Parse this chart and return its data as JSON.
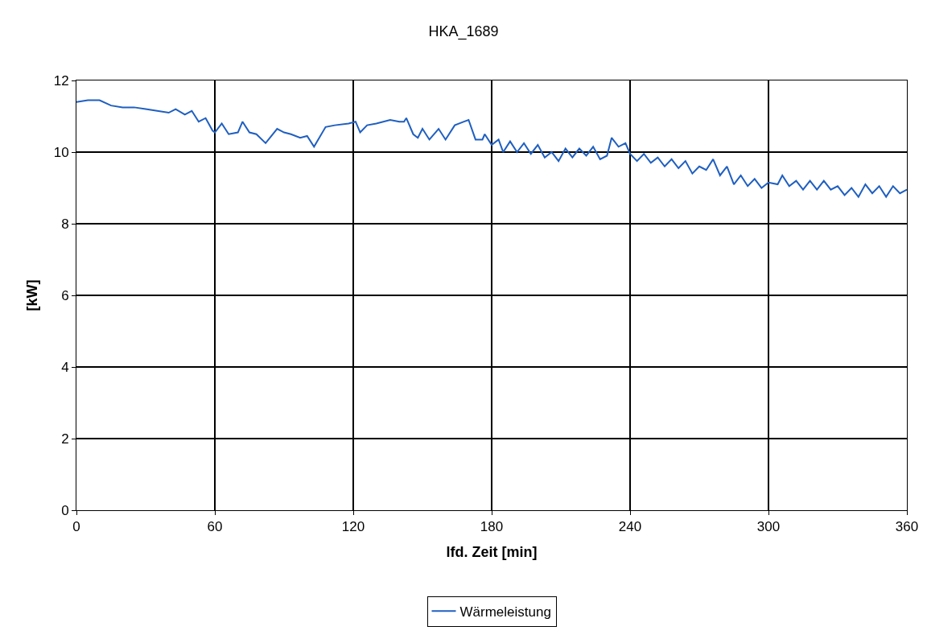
{
  "chart_data": {
    "type": "line",
    "title": "HKA_1689",
    "xlabel": "lfd. Zeit [min]",
    "ylabel": "[kW]",
    "xlim": [
      0,
      360
    ],
    "xticks": [
      0,
      60,
      120,
      180,
      240,
      300,
      360
    ],
    "ylim": [
      0,
      12
    ],
    "yticks": [
      0,
      2,
      4,
      6,
      8,
      10,
      12
    ],
    "grid": true,
    "legend": "bottom",
    "marker": "none",
    "line_style": "solid",
    "series": [
      {
        "name": "Wärmeleistung",
        "color": "#1f5fc0",
        "x": [
          0,
          5,
          10,
          15,
          20,
          25,
          30,
          35,
          40,
          43,
          47,
          50,
          53,
          56,
          59,
          60,
          63,
          66,
          70,
          72,
          75,
          78,
          82,
          87,
          90,
          93,
          97,
          100,
          103,
          108,
          112,
          118,
          121,
          123,
          126,
          130,
          136,
          140,
          142,
          143,
          146,
          148,
          150,
          153,
          157,
          160,
          164,
          168,
          170,
          173,
          176,
          177,
          180,
          183,
          185,
          188,
          191,
          194,
          197,
          200,
          203,
          206,
          209,
          212,
          215,
          218,
          221,
          224,
          227,
          230,
          232,
          235,
          238,
          240,
          243,
          246,
          249,
          252,
          255,
          258,
          261,
          264,
          267,
          270,
          273,
          276,
          279,
          282,
          285,
          288,
          291,
          294,
          297,
          300,
          304,
          306,
          309,
          312,
          315,
          318,
          321,
          324,
          327,
          330,
          333,
          336,
          339,
          342,
          345,
          348,
          351,
          354,
          357,
          360
        ],
        "values": [
          11.4,
          11.45,
          11.45,
          11.3,
          11.25,
          11.25,
          11.2,
          11.15,
          11.1,
          11.2,
          11.05,
          11.15,
          10.85,
          10.95,
          10.6,
          10.55,
          10.8,
          10.5,
          10.55,
          10.85,
          10.55,
          10.5,
          10.25,
          10.65,
          10.55,
          10.5,
          10.4,
          10.45,
          10.15,
          10.7,
          10.75,
          10.8,
          10.85,
          10.55,
          10.75,
          10.8,
          10.9,
          10.85,
          10.85,
          10.95,
          10.5,
          10.4,
          10.65,
          10.35,
          10.65,
          10.35,
          10.75,
          10.85,
          10.9,
          10.35,
          10.35,
          10.5,
          10.2,
          10.35,
          10.0,
          10.3,
          10.0,
          10.25,
          9.95,
          10.2,
          9.85,
          10.0,
          9.75,
          10.1,
          9.85,
          10.1,
          9.9,
          10.15,
          9.8,
          9.9,
          10.4,
          10.15,
          10.25,
          9.95,
          9.75,
          9.95,
          9.7,
          9.85,
          9.6,
          9.8,
          9.55,
          9.75,
          9.4,
          9.6,
          9.5,
          9.8,
          9.35,
          9.6,
          9.1,
          9.35,
          9.05,
          9.25,
          9.0,
          9.15,
          9.1,
          9.35,
          9.05,
          9.2,
          8.95,
          9.2,
          8.95,
          9.2,
          8.95,
          9.05,
          8.8,
          9.0,
          8.75,
          9.1,
          8.85,
          9.05,
          8.75,
          9.05,
          8.85,
          8.95
        ]
      }
    ]
  }
}
